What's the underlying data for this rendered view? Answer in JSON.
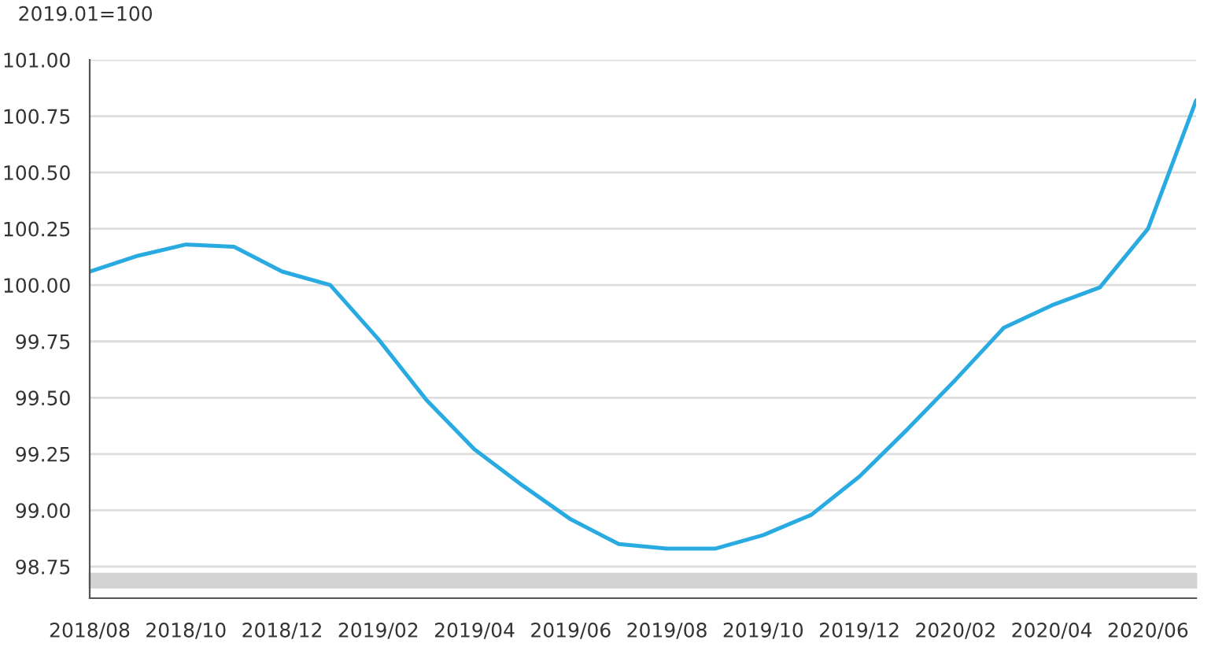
{
  "chart_data": {
    "type": "line",
    "ylabel": "2019.01=100",
    "categories": [
      "2018/08",
      null,
      "2018/10",
      null,
      "2018/12",
      null,
      "2019/02",
      null,
      "2019/04",
      null,
      "2019/06",
      null,
      "2019/08",
      null,
      "2019/10",
      null,
      "2019/12",
      null,
      "2020/02",
      null,
      "2020/04",
      null,
      "2020/06",
      null
    ],
    "series": [
      {
        "color": "#29abe2",
        "values": [
          100.06,
          100.13,
          100.18,
          100.17,
          100.06,
          100.0,
          99.76,
          99.49,
          99.27,
          99.11,
          98.96,
          98.85,
          98.83,
          98.83,
          98.89,
          98.98,
          99.15,
          99.36,
          99.58,
          99.81,
          99.91,
          99.99,
          100.25,
          100.82
        ]
      }
    ],
    "ylim": [
      98.61,
      101.0
    ],
    "yticks": [
      {
        "value": 98.75,
        "label": "98.75"
      },
      {
        "value": 99.0,
        "label": "99.00"
      },
      {
        "value": 99.25,
        "label": "99.25"
      },
      {
        "value": 99.5,
        "label": "99.50"
      },
      {
        "value": 99.75,
        "label": "99.75"
      },
      {
        "value": 100.0,
        "label": "100.00"
      },
      {
        "value": 100.25,
        "label": "100.25"
      },
      {
        "value": 100.5,
        "label": "100.50"
      },
      {
        "value": 100.75,
        "label": "100.75"
      },
      {
        "value": 101.0,
        "label": "101.00"
      }
    ],
    "grid": "y",
    "marker": "none",
    "line_style": "solid"
  }
}
